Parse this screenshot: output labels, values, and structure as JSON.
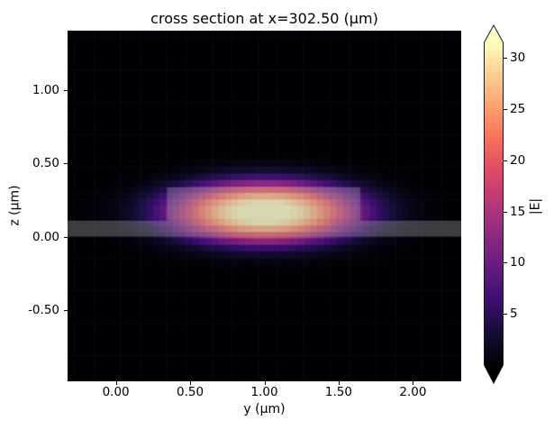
{
  "chart_data": {
    "type": "heatmap",
    "title": "cross section at x=302.50 (μm)",
    "xlabel": "y (μm)",
    "ylabel": "z (μm)",
    "x_range": [
      -0.325,
      2.325
    ],
    "z_range": [
      -0.99,
      1.41
    ],
    "x_ticks": [
      {
        "value": 0.0,
        "label": "0.00"
      },
      {
        "value": 0.5,
        "label": "0.50"
      },
      {
        "value": 1.0,
        "label": "1.00"
      },
      {
        "value": 1.5,
        "label": "1.50"
      },
      {
        "value": 2.0,
        "label": "2.00"
      }
    ],
    "z_ticks": [
      {
        "value": 1.0,
        "label": "1.00"
      },
      {
        "value": 0.5,
        "label": "0.50"
      },
      {
        "value": 0.0,
        "label": "0.00"
      },
      {
        "value": -0.5,
        "label": "-0.50"
      }
    ],
    "colormap": {
      "name": "magma",
      "stops": [
        {
          "pos": 0.0,
          "color": "#000004"
        },
        {
          "pos": 0.1,
          "color": "#140e36"
        },
        {
          "pos": 0.2,
          "color": "#3b0f70"
        },
        {
          "pos": 0.3,
          "color": "#641a80"
        },
        {
          "pos": 0.4,
          "color": "#8c2981"
        },
        {
          "pos": 0.5,
          "color": "#b73779"
        },
        {
          "pos": 0.6,
          "color": "#de4968"
        },
        {
          "pos": 0.7,
          "color": "#f7705c"
        },
        {
          "pos": 0.8,
          "color": "#fe9f6d"
        },
        {
          "pos": 0.9,
          "color": "#fecf92"
        },
        {
          "pos": 1.0,
          "color": "#fcfdbf"
        }
      ]
    },
    "colorbar": {
      "label": "|E|",
      "vmin": 0,
      "vmax": 31.5,
      "extend": "both",
      "ticks": [
        {
          "value": 5,
          "label": "5"
        },
        {
          "value": 10,
          "label": "10"
        },
        {
          "value": 15,
          "label": "15"
        },
        {
          "value": 20,
          "label": "20"
        },
        {
          "value": 25,
          "label": "25"
        },
        {
          "value": 30,
          "label": "30"
        }
      ]
    },
    "field": {
      "description": "waveguide fundamental mode |E| magnitude, elliptical flat-top profile",
      "peak_value": 33,
      "center_y": 1.0,
      "center_z": 0.168,
      "width_y": 0.617,
      "width_z": 0.2,
      "exponent": 2.5
    },
    "grid": {
      "ncols": 60,
      "nrows": 54
    },
    "structures": [
      {
        "name": "slab",
        "y": [
          -0.325,
          2.325
        ],
        "z": [
          0.0,
          0.11
        ]
      },
      {
        "name": "ridge",
        "y": [
          0.345,
          1.645
        ],
        "z": [
          0.11,
          0.337
        ]
      }
    ],
    "structure_overlay_color": "rgba(158,158,158,0.38)"
  }
}
